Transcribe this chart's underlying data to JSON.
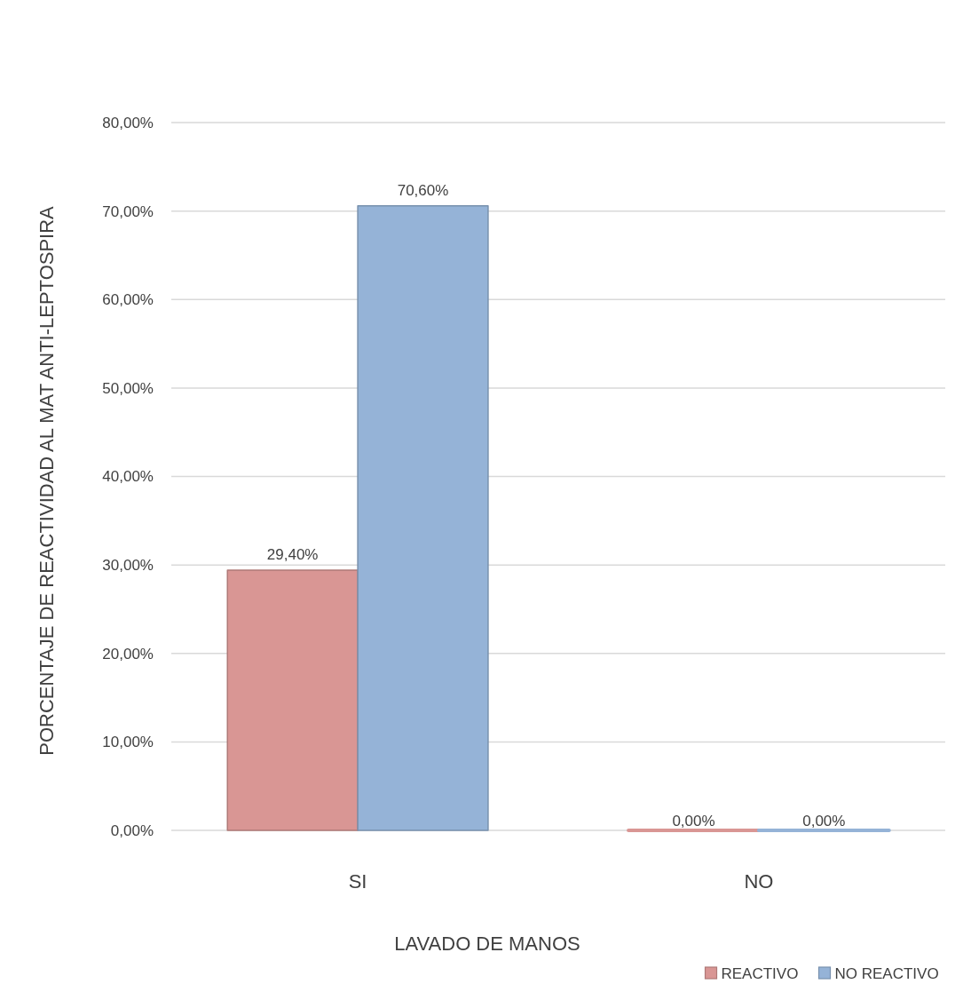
{
  "chart_data": {
    "type": "bar",
    "xlabel": "LAVADO DE MANOS",
    "ylabel": "PORCENTAJE DE REACTIVIDAD AL MAT ANTI-LEPTOSPIRA",
    "categories": [
      "SI",
      "NO"
    ],
    "series": [
      {
        "name": "REACTIVO",
        "color": "#d99694",
        "values": [
          29.4,
          0
        ],
        "value_labels": [
          "29,40%",
          "0,00%"
        ]
      },
      {
        "name": "NO REACTIVO",
        "color": "#95b3d7",
        "values": [
          70.6,
          0
        ],
        "value_labels": [
          "70,60%",
          "0,00%"
        ]
      }
    ],
    "ylim": [
      0,
      80
    ],
    "yticks": [
      {
        "value": 0,
        "label": "0,00%"
      },
      {
        "value": 10,
        "label": "10,00%"
      },
      {
        "value": 20,
        "label": "20,00%"
      },
      {
        "value": 30,
        "label": "30,00%"
      },
      {
        "value": 40,
        "label": "40,00%"
      },
      {
        "value": 50,
        "label": "50,00%"
      },
      {
        "value": 60,
        "label": "60,00%"
      },
      {
        "value": 70,
        "label": "70,00%"
      },
      {
        "value": 80,
        "label": "80,00%"
      }
    ],
    "grid": "y",
    "legend": "bottom right"
  }
}
